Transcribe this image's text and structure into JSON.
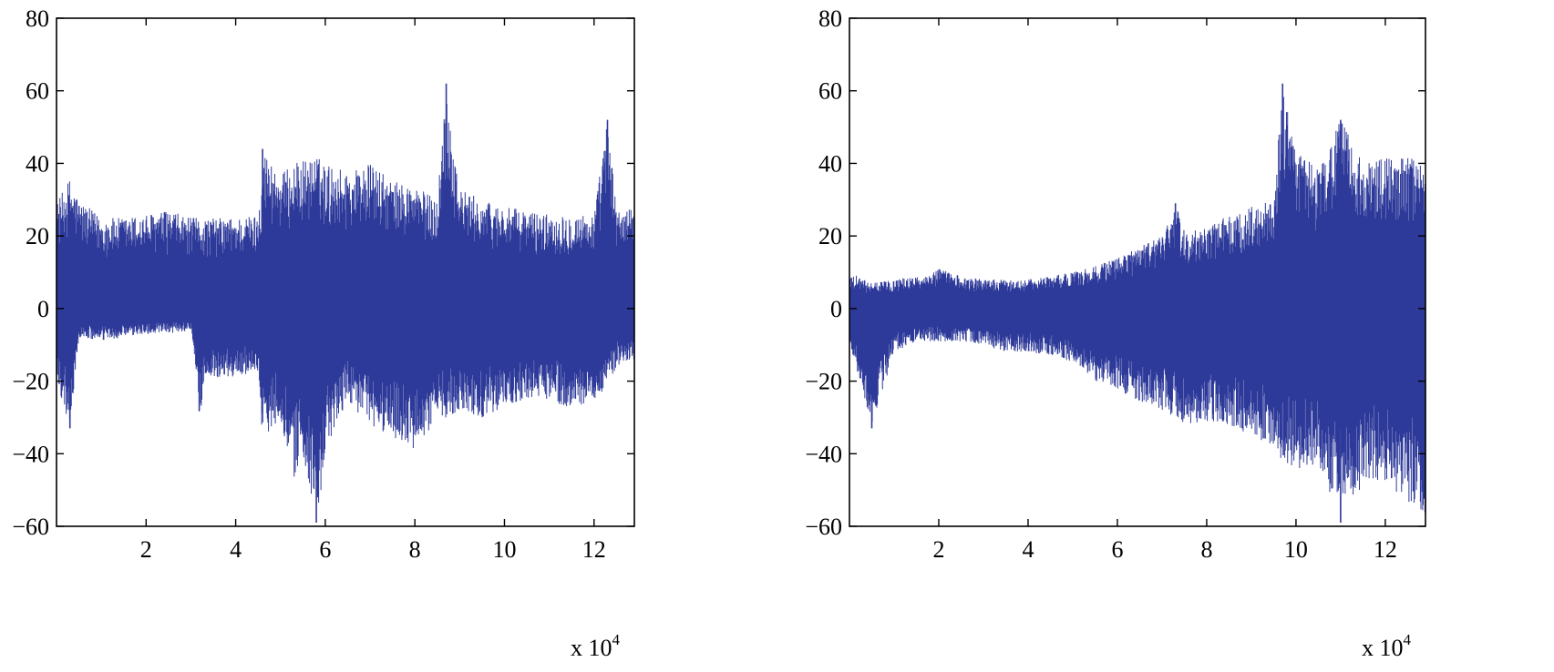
{
  "figure": {
    "panels": [
      {
        "id": "left",
        "x_multiplier": {
          "prefix": "x 10",
          "exponent": "4"
        }
      },
      {
        "id": "right",
        "x_multiplier": {
          "prefix": "x 10",
          "exponent": "4"
        }
      }
    ]
  },
  "chart_data": [
    {
      "type": "line",
      "title": "",
      "xlabel": "",
      "ylabel": "",
      "x_unit_multiplier": 10000,
      "xlim": [
        0,
        12.9
      ],
      "ylim": [
        -60,
        80
      ],
      "xticks": [
        2,
        4,
        6,
        8,
        10,
        12
      ],
      "yticks": [
        -60,
        -40,
        -20,
        0,
        20,
        40,
        60,
        80
      ],
      "grid": false,
      "color": "#2e3a9a",
      "series": [
        {
          "x": [
            0,
            0.3,
            0.5,
            1,
            1.5,
            2,
            2.5,
            3,
            3.2,
            3.3,
            4,
            4.5,
            4.6,
            5,
            5.3,
            5.5,
            5.8,
            5.9,
            6,
            6.5,
            7,
            7.5,
            8,
            8.5,
            8.7,
            9,
            9.5,
            10,
            10.5,
            11,
            11.5,
            12,
            12.3,
            12.5,
            12.9
          ],
          "upper_envelope": [
            29,
            36,
            30,
            25,
            25,
            26,
            27,
            25,
            25,
            25,
            25,
            26,
            44,
            37,
            40,
            41,
            42,
            41,
            40,
            38,
            40,
            35,
            34,
            30,
            62,
            33,
            30,
            28,
            27,
            26,
            26,
            26,
            52,
            28,
            27
          ],
          "lower_envelope": [
            -20,
            -33,
            -8,
            -9,
            -8,
            -7,
            -7,
            -6,
            -31,
            -19,
            -19,
            -17,
            -36,
            -30,
            -48,
            -40,
            -59,
            -55,
            -40,
            -25,
            -33,
            -35,
            -40,
            -30,
            -30,
            -28,
            -30,
            -27,
            -25,
            -25,
            -28,
            -25,
            -22,
            -16,
            -14
          ]
        }
      ],
      "peaks": [
        {
          "x": 8.7,
          "y": 62
        },
        {
          "x": 12.3,
          "y": 52
        },
        {
          "x": 4.6,
          "y": 44
        },
        {
          "x": 5.8,
          "y": -59
        },
        {
          "x": 0.3,
          "y": -33
        }
      ]
    },
    {
      "type": "line",
      "title": "",
      "xlabel": "",
      "ylabel": "",
      "x_unit_multiplier": 10000,
      "xlim": [
        0,
        12.9
      ],
      "ylim": [
        -60,
        80
      ],
      "xticks": [
        2,
        4,
        6,
        8,
        10,
        12
      ],
      "yticks": [
        -60,
        -40,
        -20,
        0,
        20,
        40,
        60,
        80
      ],
      "grid": false,
      "color": "#2e3a9a",
      "series": [
        {
          "x": [
            0,
            0.5,
            1,
            1.5,
            2,
            2.5,
            3,
            3.5,
            4,
            4.5,
            5,
            5.5,
            6,
            6.5,
            7,
            7.3,
            7.5,
            8,
            8.5,
            9,
            9.5,
            9.7,
            10,
            10.5,
            11,
            11.5,
            12,
            12.5,
            12.9
          ],
          "upper_envelope": [
            10,
            7,
            8,
            9,
            11,
            9,
            8,
            8,
            8,
            9,
            10,
            12,
            14,
            17,
            20,
            29,
            22,
            22,
            26,
            28,
            30,
            62,
            44,
            38,
            52,
            40,
            42,
            42,
            41
          ],
          "lower_envelope": [
            -9,
            -33,
            -12,
            -9,
            -9,
            -9,
            -10,
            -12,
            -12,
            -13,
            -15,
            -20,
            -22,
            -26,
            -28,
            -30,
            -32,
            -31,
            -32,
            -35,
            -38,
            -42,
            -45,
            -43,
            -59,
            -49,
            -48,
            -53,
            -57
          ]
        }
      ],
      "peaks": [
        {
          "x": 9.7,
          "y": 62
        },
        {
          "x": 11,
          "y": 52
        },
        {
          "x": 7.3,
          "y": 29
        },
        {
          "x": 11,
          "y": -59
        },
        {
          "x": 0.5,
          "y": -33
        }
      ]
    }
  ]
}
